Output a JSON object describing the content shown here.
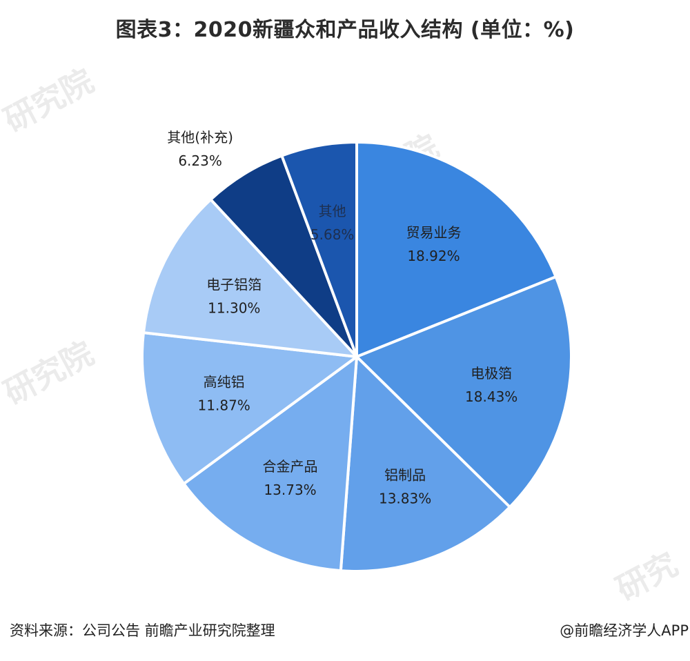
{
  "title": "图表3：2020新疆众和产品收入结构 (单位：%)",
  "footer": {
    "source": "资料来源：公司公告 前瞻产业研究院整理",
    "brand": "@前瞻经济学人APP"
  },
  "chart_data": {
    "type": "pie",
    "title": "图表3：2020新疆众和产品收入结构 (单位：%)",
    "slices": [
      {
        "label": "贸易业务",
        "value": 18.92,
        "value_text": "18.92%",
        "color": "#3a86e0"
      },
      {
        "label": "电极箔",
        "value": 18.43,
        "value_text": "18.43%",
        "color": "#4f94e4"
      },
      {
        "label": "铝制品",
        "value": 13.83,
        "value_text": "13.83%",
        "color": "#62a0ea"
      },
      {
        "label": "合金产品",
        "value": 13.73,
        "value_text": "13.73%",
        "color": "#76adef"
      },
      {
        "label": "高纯铝",
        "value": 11.87,
        "value_text": "11.87%",
        "color": "#8ebcf3"
      },
      {
        "label": "电子铝箔",
        "value": 11.3,
        "value_text": "11.30%",
        "color": "#a8cbf6"
      },
      {
        "label": "其他(补充)",
        "value": 6.23,
        "value_text": "6.23%",
        "color": "#0f3d86",
        "label_outside": true
      },
      {
        "label": "其他",
        "value": 5.68,
        "value_text": "5.68%",
        "color": "#1b56ae",
        "label_dark": true
      }
    ]
  }
}
